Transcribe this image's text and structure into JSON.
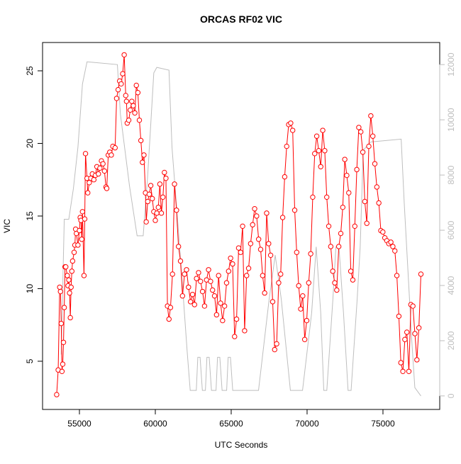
{
  "chart_data": {
    "type": "line",
    "title": "ORCAS RF02 VIC",
    "x_label": "UTC Seconds",
    "y_label": "VIC",
    "xlim": [
      52570,
      78740
    ],
    "ylim": [
      1.68,
      26.95
    ],
    "y2lim": [
      -490,
      12800
    ],
    "xticks": [
      55000,
      60000,
      65000,
      70000,
      75000
    ],
    "yticks": [
      5,
      10,
      15,
      20,
      25
    ],
    "y2ticks": [
      0,
      2000,
      4000,
      6000,
      8000,
      10000,
      12000
    ],
    "series": [
      {
        "color": "#ff0000",
        "markers": true,
        "x": [
          53500,
          53600,
          53700,
          53750,
          53800,
          53850,
          53900,
          53950,
          54000,
          54050,
          54100,
          54200,
          54250,
          54300,
          54350,
          54400,
          54450,
          54500,
          54550,
          54650,
          54700,
          54750,
          54800,
          54900,
          55000,
          55050,
          55100,
          55150,
          55200,
          55300,
          55350,
          55400,
          55500,
          55550,
          55650,
          55750,
          55850,
          55950,
          56050,
          56150,
          56250,
          56350,
          56450,
          56550,
          56650,
          56750,
          56800,
          56900,
          57000,
          57100,
          57200,
          57350,
          57450,
          57550,
          57650,
          57750,
          57850,
          57950,
          58050,
          58100,
          58150,
          58250,
          58350,
          58450,
          58550,
          58650,
          58750,
          58850,
          58950,
          59050,
          59150,
          59250,
          59350,
          59400,
          59500,
          59600,
          59700,
          59800,
          59900,
          60000,
          60100,
          60200,
          60300,
          60400,
          60500,
          60600,
          60700,
          60800,
          60900,
          61000,
          61132,
          61264,
          61396,
          61528,
          61660,
          61792,
          61924,
          62056,
          62188,
          62320,
          62452,
          62584,
          62716,
          62848,
          62980,
          63112,
          63244,
          63376,
          63508,
          63640,
          63772,
          63904,
          64036,
          64168,
          64300,
          64432,
          64564,
          64696,
          64828,
          64960,
          65092,
          65224,
          65356,
          65488,
          65620,
          65752,
          65884,
          66016,
          66148,
          66280,
          66412,
          66544,
          66676,
          66808,
          66940,
          67072,
          67204,
          67336,
          67468,
          67600,
          67732,
          67864,
          67996,
          68128,
          68260,
          68392,
          68524,
          68656,
          68788,
          68920,
          69052,
          69184,
          69316,
          69448,
          69580,
          69712,
          69844,
          69976,
          70108,
          70240,
          70372,
          70504,
          70636,
          70768,
          70900,
          71032,
          71164,
          71296,
          71428,
          71560,
          71692,
          71824,
          71956,
          72088,
          72220,
          72352,
          72484,
          72616,
          72748,
          72880,
          73012,
          73144,
          73276,
          73408,
          73540,
          73672,
          73804,
          73936,
          74068,
          74200,
          74332,
          74464,
          74596,
          74728,
          74860,
          74992,
          75124,
          75256,
          75388,
          75520,
          75652,
          75784,
          75916,
          76048,
          76180,
          76312,
          76444,
          76576,
          76708,
          76840,
          76972,
          77104,
          77236,
          77368,
          77500
        ],
        "values": [
          2.7,
          4.4,
          10.1,
          9.8,
          7.6,
          4.3,
          4.8,
          6.3,
          8.7,
          11.5,
          11.5,
          10.9,
          10.2,
          10.6,
          9.7,
          8.0,
          10.1,
          11.2,
          11.9,
          12.5,
          13.0,
          14.1,
          13.8,
          13.0,
          14.0,
          14.9,
          14.7,
          13.4,
          15.3,
          10.9,
          14.8,
          19.3,
          17.6,
          16.6,
          17.3,
          17.6,
          17.9,
          17.5,
          17.8,
          18.4,
          17.9,
          18.3,
          18.8,
          18.6,
          18.1,
          17.0,
          16.9,
          19.2,
          19.4,
          19.2,
          19.8,
          19.7,
          23.1,
          23.7,
          24.3,
          24.1,
          24.8,
          26.1,
          23.3,
          22.9,
          21.4,
          21.6,
          22.3,
          22.9,
          22.6,
          22.1,
          24.0,
          23.5,
          21.6,
          20.2,
          18.7,
          19.2,
          16.6,
          14.6,
          16.0,
          16.5,
          17.1,
          16.2,
          15.3,
          14.7,
          15.2,
          15.6,
          17.2,
          15.2,
          16.3,
          18.0,
          17.6,
          8.8,
          7.9,
          8.7,
          11.0,
          17.2,
          15.4,
          12.9,
          11.9,
          9.5,
          11.0,
          11.3,
          10.1,
          9.1,
          9.6,
          8.9,
          10.7,
          11.1,
          10.5,
          9.8,
          8.8,
          10.6,
          11.3,
          10.5,
          9.9,
          9.5,
          8.2,
          10.9,
          9.0,
          7.8,
          8.8,
          10.4,
          11.2,
          12.1,
          11.7,
          6.7,
          7.9,
          12.8,
          12.5,
          14.3,
          7.1,
          10.9,
          11.4,
          13.1,
          14.4,
          15.5,
          15.0,
          13.4,
          12.7,
          10.9,
          9.7,
          15.2,
          13.1,
          12.3,
          9.1,
          5.8,
          6.2,
          10.4,
          11.0,
          14.9,
          17.7,
          19.8,
          21.3,
          21.4,
          20.9,
          15.4,
          12.5,
          10.2,
          8.6,
          9.5,
          6.5,
          7.8,
          10.4,
          12.4,
          16.3,
          19.3,
          20.5,
          19.5,
          18.4,
          20.9,
          19.5,
          16.3,
          14.3,
          12.9,
          11.2,
          10.4,
          9.9,
          12.9,
          13.8,
          15.6,
          18.9,
          17.8,
          16.6,
          11.2,
          10.6,
          14.3,
          18.2,
          21.1,
          20.8,
          19.4,
          16.0,
          14.5,
          19.8,
          21.9,
          20.5,
          18.6,
          17.0,
          15.9,
          14.0,
          13.9,
          13.5,
          13.3,
          13.1,
          13.2,
          12.9,
          12.6,
          10.9,
          8.1,
          4.9,
          4.3,
          6.5,
          7.0,
          4.3,
          8.9,
          8.8,
          6.9,
          5.1,
          7.3,
          11.0
        ]
      },
      {
        "color": "#bebebe",
        "axis": "y2",
        "x": [
          53800,
          54000,
          54300,
          54600,
          54900,
          55200,
          55500,
          57500,
          57700,
          58300,
          58800,
          59200,
          59500,
          59900,
          60100,
          60900,
          61100,
          61700,
          62100,
          62300,
          62700,
          62800,
          62950,
          63100,
          63300,
          63400,
          63550,
          63700,
          64000,
          64100,
          64250,
          64400,
          64700,
          64800,
          64950,
          65100,
          66800,
          67500,
          67900,
          68300,
          68900,
          69700,
          70300,
          70600,
          70900,
          71100,
          71300,
          71700,
          71900,
          72100,
          72400,
          72700,
          72900,
          73300,
          73500,
          73700,
          74200,
          76200,
          76400,
          76600,
          76900,
          77100,
          77500
        ],
        "values": [
          1500,
          6400,
          6400,
          7500,
          9000,
          11300,
          12100,
          12000,
          10200,
          7600,
          5800,
          5800,
          8000,
          11700,
          11900,
          11800,
          9000,
          4700,
          1600,
          200,
          200,
          1400,
          1400,
          200,
          200,
          1400,
          1400,
          200,
          200,
          1400,
          1400,
          200,
          200,
          1400,
          1400,
          200,
          200,
          3500,
          5100,
          3500,
          200,
          200,
          3000,
          5400,
          3000,
          200,
          200,
          3500,
          5400,
          5400,
          3000,
          200,
          200,
          3500,
          5400,
          8900,
          9200,
          9300,
          7000,
          5000,
          2000,
          300,
          0
        ]
      }
    ]
  }
}
